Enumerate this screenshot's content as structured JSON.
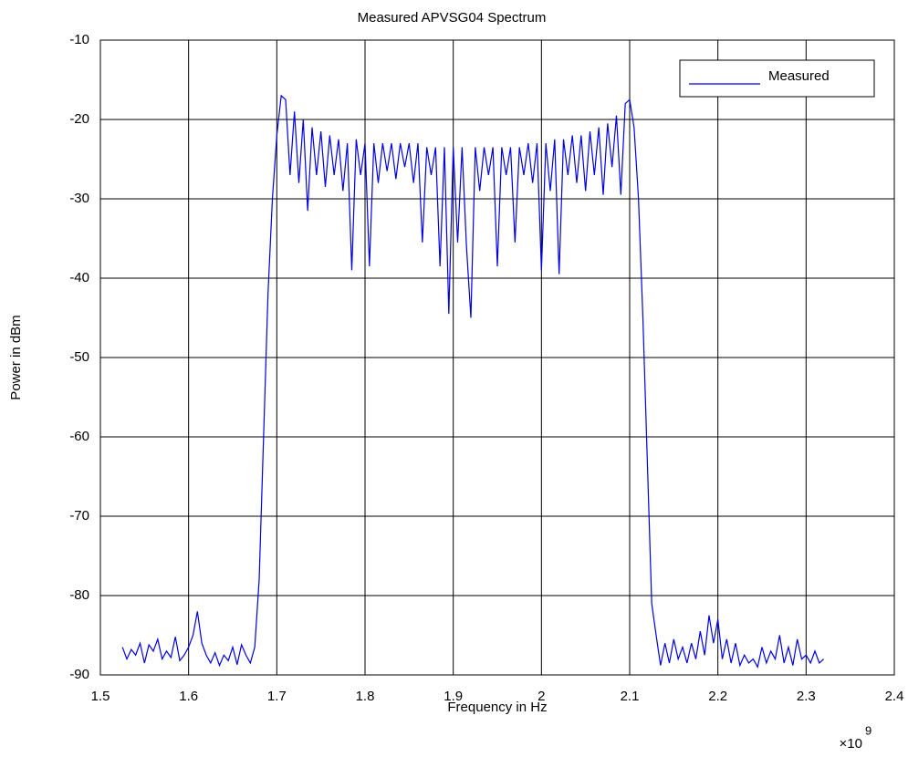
{
  "chart_data": {
    "type": "line",
    "title": "Measured APVSG04 Spectrum",
    "xlabel": "Frequency in Hz",
    "ylabel": "Power in dBm",
    "x_multiplier": {
      "base": "×10",
      "exponent": "9"
    },
    "xlim": [
      1.5,
      2.4
    ],
    "xticks": [
      1.5,
      1.6,
      1.7,
      1.8,
      1.9,
      2,
      2.1,
      2.2,
      2.3,
      2.4
    ],
    "ylim": [
      -90,
      -10
    ],
    "yticks": [
      -90,
      -80,
      -70,
      -60,
      -50,
      -40,
      -30,
      -20,
      -10
    ],
    "grid": true,
    "legend": "upper right",
    "x": [
      1.525,
      1.53,
      1.535,
      1.54,
      1.545,
      1.55,
      1.555,
      1.56,
      1.565,
      1.57,
      1.575,
      1.58,
      1.585,
      1.59,
      1.595,
      1.6,
      1.605,
      1.61,
      1.615,
      1.62,
      1.625,
      1.63,
      1.635,
      1.64,
      1.645,
      1.65,
      1.655,
      1.66,
      1.665,
      1.67,
      1.675,
      1.68,
      1.685,
      1.69,
      1.695,
      1.7,
      1.705,
      1.71,
      1.715,
      1.72,
      1.725,
      1.73,
      1.735,
      1.74,
      1.745,
      1.75,
      1.755,
      1.76,
      1.765,
      1.77,
      1.775,
      1.78,
      1.785,
      1.79,
      1.795,
      1.8,
      1.805,
      1.81,
      1.815,
      1.82,
      1.825,
      1.83,
      1.835,
      1.84,
      1.845,
      1.85,
      1.855,
      1.86,
      1.865,
      1.87,
      1.875,
      1.88,
      1.885,
      1.89,
      1.895,
      1.9,
      1.905,
      1.91,
      1.915,
      1.92,
      1.925,
      1.93,
      1.935,
      1.94,
      1.945,
      1.95,
      1.955,
      1.96,
      1.965,
      1.97,
      1.975,
      1.98,
      1.985,
      1.99,
      1.995,
      2.0,
      2.005,
      2.01,
      2.015,
      2.02,
      2.025,
      2.03,
      2.035,
      2.04,
      2.045,
      2.05,
      2.055,
      2.06,
      2.065,
      2.07,
      2.075,
      2.08,
      2.085,
      2.09,
      2.095,
      2.1,
      2.105,
      2.11,
      2.115,
      2.12,
      2.125,
      2.13,
      2.135,
      2.14,
      2.145,
      2.15,
      2.155,
      2.16,
      2.165,
      2.17,
      2.175,
      2.18,
      2.185,
      2.19,
      2.195,
      2.2,
      2.205,
      2.21,
      2.215,
      2.22,
      2.225,
      2.23,
      2.235,
      2.24,
      2.245,
      2.25,
      2.255,
      2.26,
      2.265,
      2.27,
      2.275,
      2.28,
      2.285,
      2.29,
      2.295,
      2.3,
      2.305,
      2.31,
      2.315,
      2.32
    ],
    "series": [
      {
        "name": "Measured",
        "color": "#0000e0",
        "values": [
          -86.5,
          -88,
          -86.8,
          -87.5,
          -86,
          -88.5,
          -86.2,
          -87,
          -85.5,
          -88,
          -87,
          -87.8,
          -85.2,
          -88.2,
          -87.5,
          -86.5,
          -85,
          -82,
          -86,
          -87.5,
          -88.5,
          -87.2,
          -88.8,
          -87.5,
          -88.2,
          -86.5,
          -88.7,
          -86.2,
          -87.5,
          -88.5,
          -86.5,
          -78,
          -60,
          -42,
          -30,
          -22,
          -17,
          -17.5,
          -27,
          -19,
          -28,
          -20,
          -31.5,
          -21,
          -27,
          -21.5,
          -28.5,
          -22,
          -27,
          -22.5,
          -29,
          -23,
          -39,
          -22.5,
          -27,
          -23,
          -38.5,
          -23,
          -28,
          -23,
          -26.5,
          -23,
          -27.5,
          -23,
          -26,
          -23,
          -28,
          -23,
          -35.5,
          -23.5,
          -27,
          -23.5,
          -38.5,
          -23.5,
          -44.5,
          -23.5,
          -35.5,
          -23.5,
          -36,
          -45,
          -23.5,
          -29,
          -23.5,
          -27,
          -23.5,
          -38.5,
          -23.5,
          -27,
          -23.5,
          -35.5,
          -23.5,
          -27,
          -23,
          -28,
          -23,
          -39,
          -23,
          -29,
          -22.5,
          -39.5,
          -22.5,
          -27,
          -22,
          -28,
          -22,
          -29,
          -21.5,
          -27,
          -21,
          -29.5,
          -20.5,
          -26,
          -19.5,
          -29.5,
          -18,
          -17.5,
          -21,
          -30,
          -45,
          -63,
          -81,
          -85,
          -88.8,
          -86,
          -88.5,
          -85.5,
          -88,
          -86.5,
          -88.5,
          -86,
          -88,
          -84.5,
          -87.5,
          -82.5,
          -86,
          -83,
          -88,
          -85.5,
          -88.5,
          -86,
          -88.8,
          -87.5,
          -88.5,
          -88,
          -89,
          -86.5,
          -88.5,
          -87,
          -88,
          -85,
          -88.5,
          -86.5,
          -88.8,
          -85.5,
          -88,
          -87.5,
          -88.5,
          -87,
          -88.5,
          -88
        ]
      }
    ]
  }
}
